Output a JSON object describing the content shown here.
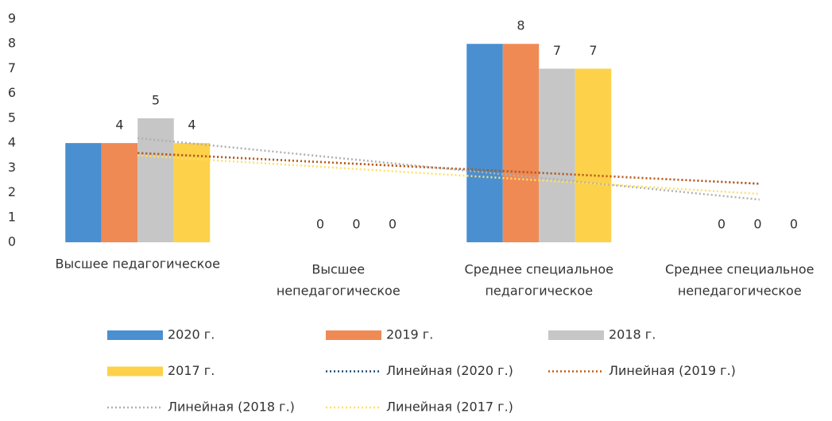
{
  "chart_data": {
    "type": "bar",
    "categories": [
      [
        "Высшее педагогическое"
      ],
      [
        "Высшее",
        "непедагогическое"
      ],
      [
        "Среднее специальное",
        "педагогическое"
      ],
      [
        "Среднее специальное",
        "непедагогическое"
      ]
    ],
    "series": [
      {
        "name": "2020 г.",
        "color": "#4a8fd0",
        "values": [
          4,
          0,
          8,
          0
        ],
        "labels_shown": false,
        "trendline": {
          "name": "Линейная (2020 г.)",
          "color": "#1f4e79"
        }
      },
      {
        "name": "2019 г.",
        "color": "#f08a55",
        "values": [
          4,
          0,
          8,
          0
        ],
        "labels_shown": true,
        "trendline": {
          "name": "Линейная (2019 г.)",
          "color": "#c55a11"
        }
      },
      {
        "name": "2018 г.",
        "color": "#c6c6c6",
        "values": [
          5,
          0,
          7,
          0
        ],
        "labels_shown": true,
        "trendline": {
          "name": "Линейная (2018 г.)",
          "color": "#b0b0b0"
        }
      },
      {
        "name": "2017 г.",
        "color": "#fdd14a",
        "values": [
          4,
          0,
          7,
          0
        ],
        "labels_shown": true,
        "trendline": {
          "name": "Линейная (2017 г.)",
          "color": "#ffe066"
        }
      }
    ],
    "ylim": [
      0,
      9
    ],
    "yticks": [
      0,
      1,
      2,
      3,
      4,
      5,
      6,
      7,
      8,
      9
    ],
    "grid": false
  }
}
